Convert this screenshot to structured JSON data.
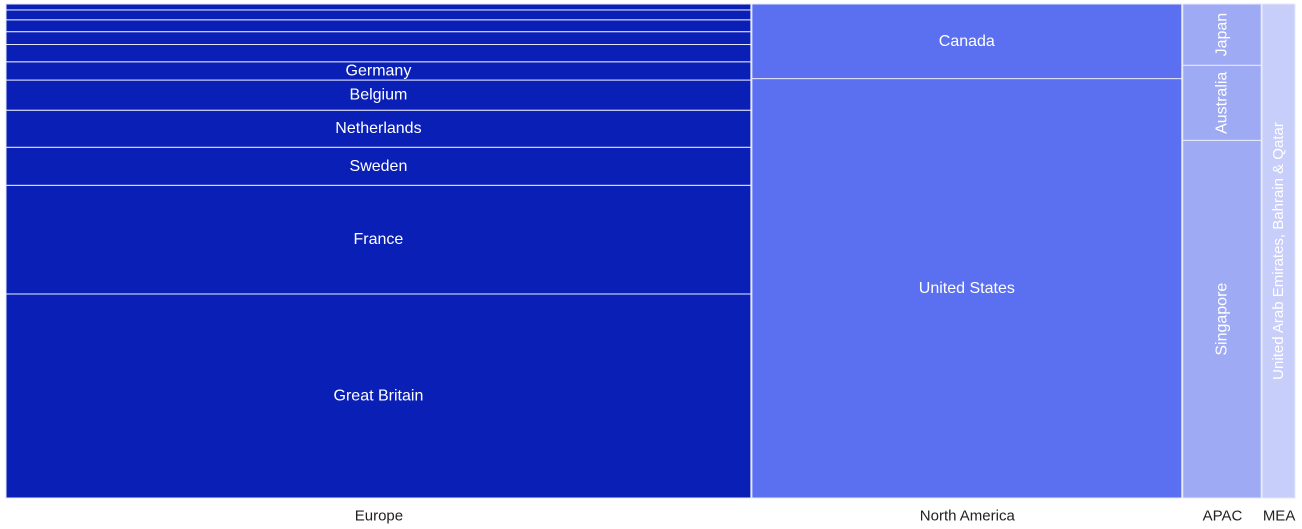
{
  "chart_data": {
    "type": "marimekko",
    "x_axis_categories": [
      "Europe",
      "North America",
      "APAC",
      "MEA"
    ],
    "colors": {
      "Europe": "#0a1fb6",
      "North America": "#5b70f0",
      "APAC": "#9eaaf4",
      "MEA": "#c8cefa"
    },
    "groups": [
      {
        "name": "Europe",
        "width_share": 57.3,
        "segments": [
          {
            "name": "Great Britain",
            "value": 41.3,
            "label": "Great Britain"
          },
          {
            "name": "France",
            "value": 22.0,
            "label": "France"
          },
          {
            "name": "Sweden",
            "value": 7.7,
            "label": "Sweden"
          },
          {
            "name": "Netherlands",
            "value": 7.5,
            "label": "Netherlands"
          },
          {
            "name": "Belgium",
            "value": 6.1,
            "label": "Belgium"
          },
          {
            "name": "Germany",
            "value": 3.7,
            "label": "Germany"
          },
          {
            "name": "",
            "value": 3.5,
            "label": ""
          },
          {
            "name": "",
            "value": 2.6,
            "label": ""
          },
          {
            "name": "",
            "value": 2.4,
            "label": ""
          },
          {
            "name": "",
            "value": 2.0,
            "label": ""
          },
          {
            "name": "",
            "value": 1.2,
            "label": ""
          }
        ]
      },
      {
        "name": "North America",
        "width_share": 33.1,
        "segments": [
          {
            "name": "United States",
            "value": 84.9,
            "label": "United States"
          },
          {
            "name": "Canada",
            "value": 15.1,
            "label": "Canada"
          }
        ]
      },
      {
        "name": "APAC",
        "width_share": 6.1,
        "segments": [
          {
            "name": "Singapore",
            "value": 72.4,
            "label": "Singapore"
          },
          {
            "name": "Australia",
            "value": 15.2,
            "label": "Australia"
          },
          {
            "name": "Japan",
            "value": 12.4,
            "label": "Japan"
          }
        ]
      },
      {
        "name": "MEA",
        "width_share": 2.6,
        "segments": [
          {
            "name": "United Arab Emirates, Bahrain & Qatar",
            "value": 100,
            "label": "United Arab Emirates, Bahrain & Qatar"
          }
        ]
      }
    ]
  }
}
